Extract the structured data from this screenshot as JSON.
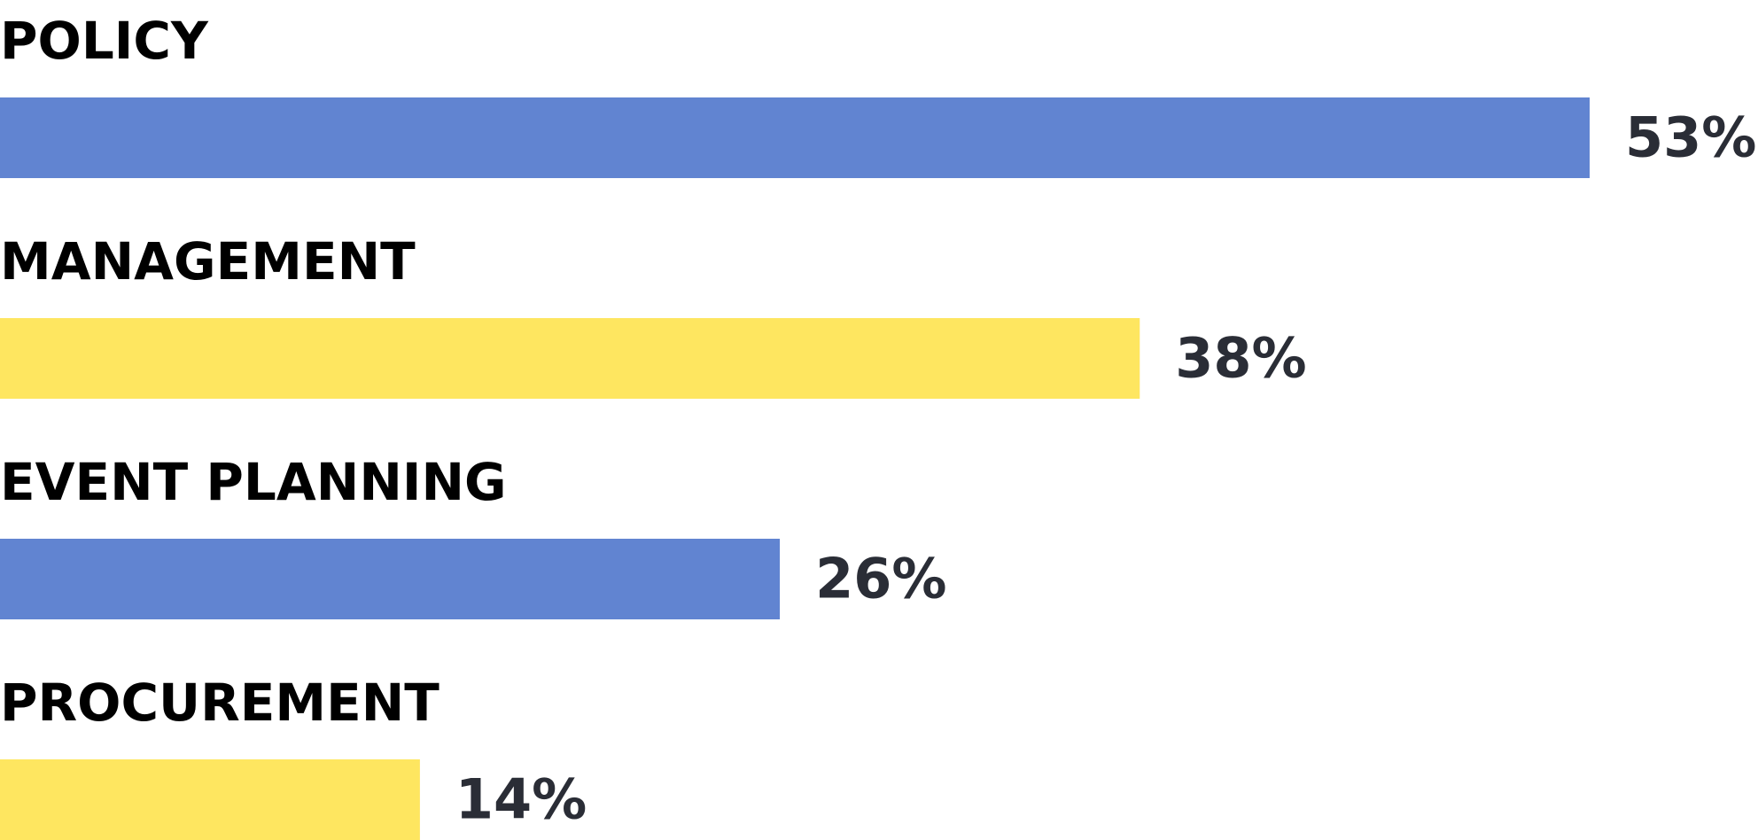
{
  "chart_data": {
    "type": "bar",
    "categories": [
      "POLICY",
      "MANAGEMENT",
      "EVENT PLANNING",
      "PROCUREMENT"
    ],
    "values": [
      53,
      38,
      26,
      14
    ],
    "value_labels": [
      "53%",
      "38%",
      "26%",
      "14%"
    ],
    "colors": [
      "#6184d1",
      "#fee660",
      "#6184d1",
      "#fee660"
    ]
  }
}
